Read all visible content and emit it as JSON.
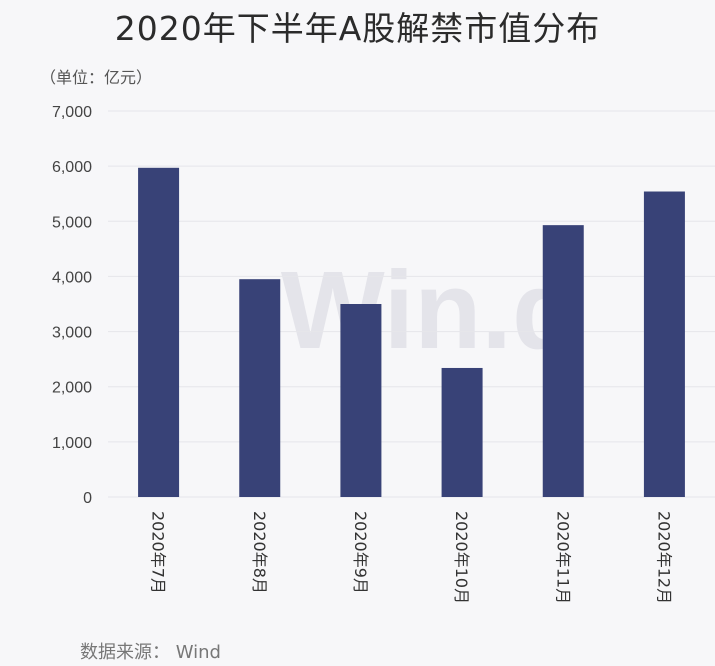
{
  "header": {
    "title": "2020年下半年A股解禁市值分布",
    "unit": "（单位：亿元）"
  },
  "footer": {
    "source": "数据来源： Wind"
  },
  "watermark": "Win.d",
  "colors": {
    "bar": "#384277",
    "grid": "#e6e6ea",
    "background": "#f7f7f9"
  },
  "chart_data": {
    "type": "bar",
    "title": "2020年下半年A股解禁市值分布",
    "ylabel": "（单位：亿元）",
    "xlabel": "",
    "categories": [
      "2020年7月",
      "2020年8月",
      "2020年9月",
      "2020年10月",
      "2020年11月",
      "2020年12月"
    ],
    "values": [
      5970,
      3950,
      3500,
      2340,
      4930,
      5540
    ],
    "ylim": [
      0,
      7000
    ],
    "yticks": [
      0,
      1000,
      2000,
      3000,
      4000,
      5000,
      6000,
      7000
    ],
    "ytick_labels": [
      "0",
      "1,000",
      "2,000",
      "3,000",
      "4,000",
      "5,000",
      "6,000",
      "7,000"
    ],
    "grid": true,
    "legend": "none"
  }
}
